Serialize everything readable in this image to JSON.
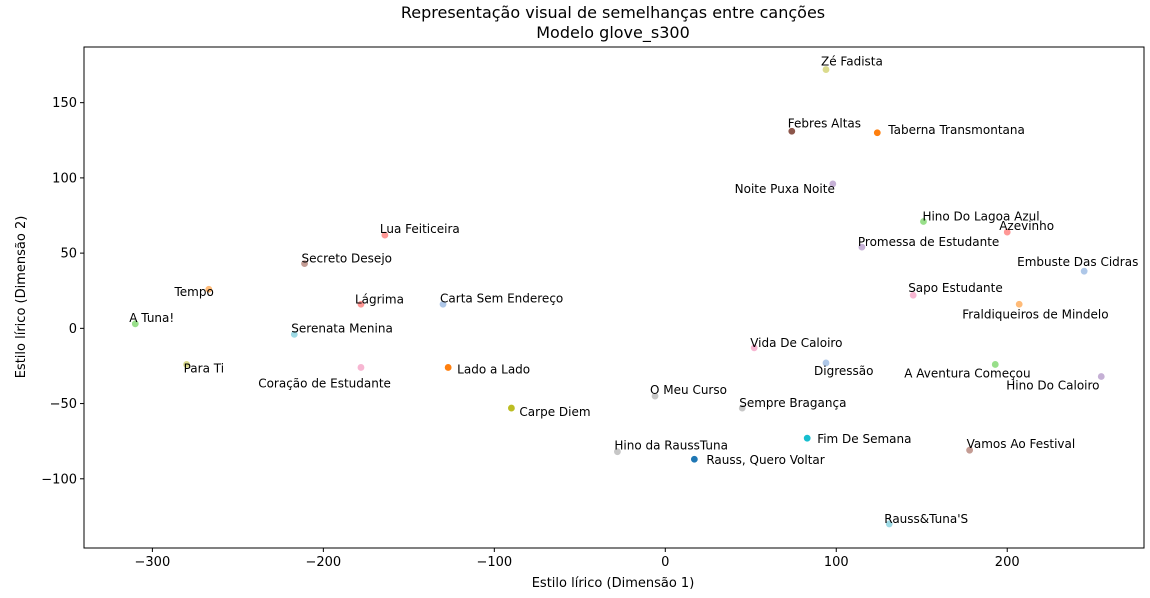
{
  "chart_data": {
    "type": "scatter",
    "title": "Representação visual de semelhanças entre canções",
    "subtitle": "Modelo glove_s300",
    "xlabel": "Estilo lírico (Dimensão 1)",
    "ylabel": "Estilo lírico (Dimensão 2)",
    "xlim": [
      -340,
      280
    ],
    "ylim": [
      -146,
      187
    ],
    "xticks": [
      -300,
      -200,
      -100,
      0,
      100,
      200
    ],
    "yticks": [
      -100,
      -50,
      0,
      50,
      100,
      150
    ],
    "xtick_labels": [
      "−300",
      "−200",
      "−100",
      "0",
      "100",
      "200"
    ],
    "ytick_labels": [
      "−100",
      "−50",
      "0",
      "50",
      "100",
      "150"
    ],
    "grid": false,
    "points": [
      {
        "label": "Zé Fadista",
        "x": 94,
        "y": 172,
        "color": "#dbdb8d"
      },
      {
        "label": "Febres Altas",
        "x": 74,
        "y": 131,
        "color": "#8c564b"
      },
      {
        "label": "Taberna Transmontana",
        "x": 124,
        "y": 130,
        "color": "#ff7f0e"
      },
      {
        "label": "Noite Puxa Noite",
        "x": 98,
        "y": 96,
        "color": "#c5b0d5"
      },
      {
        "label": "Hino Do Lagoa Azul",
        "x": 151,
        "y": 71,
        "color": "#98df8a"
      },
      {
        "label": "Azevinho",
        "x": 200,
        "y": 64,
        "color": "#ff9896"
      },
      {
        "label": "Promessa de Estudante",
        "x": 115,
        "y": 54,
        "color": "#c5b0d5"
      },
      {
        "label": "Embuste Das Cidras",
        "x": 245,
        "y": 38,
        "color": "#aec7e8"
      },
      {
        "label": "Sapo Estudante",
        "x": 145,
        "y": 22,
        "color": "#f7b6d2"
      },
      {
        "label": "Fraldiqueiros de Mindelo",
        "x": 207,
        "y": 16,
        "color": "#ffbb78"
      },
      {
        "label": "Lua Feiticeira",
        "x": -164,
        "y": 62,
        "color": "#ff9896"
      },
      {
        "label": "Secreto Desejo",
        "x": -211,
        "y": 43,
        "color": "#c49c94"
      },
      {
        "label": "Tempo",
        "x": -267,
        "y": 26,
        "color": "#ffbb78"
      },
      {
        "label": "Lágrima",
        "x": -178,
        "y": 16,
        "color": "#ff9896"
      },
      {
        "label": "Carta Sem Endereço",
        "x": -130,
        "y": 16,
        "color": "#aec7e8"
      },
      {
        "label": "A Tuna!",
        "x": -310,
        "y": 3,
        "color": "#98df8a"
      },
      {
        "label": "Serenata Menina",
        "x": -217,
        "y": -4,
        "color": "#9edae5"
      },
      {
        "label": "Para Ti",
        "x": -280,
        "y": -24,
        "color": "#dbdb8d"
      },
      {
        "label": "Coração de Estudante",
        "x": -178,
        "y": -26,
        "color": "#f7b6d2"
      },
      {
        "label": "Lado a Lado",
        "x": -127,
        "y": -26,
        "color": "#ff7f0e"
      },
      {
        "label": "Carpe Diem",
        "x": -90,
        "y": -53,
        "color": "#bcbd22"
      },
      {
        "label": "Vida De Caloiro",
        "x": 52,
        "y": -13,
        "color": "#f7b6d2"
      },
      {
        "label": "Digressão",
        "x": 94,
        "y": -23,
        "color": "#aec7e8"
      },
      {
        "label": "A Aventura Começou",
        "x": 193,
        "y": -24,
        "color": "#98df8a"
      },
      {
        "label": "Hino Do Caloiro",
        "x": 255,
        "y": -32,
        "color": "#c5b0d5"
      },
      {
        "label": "O Meu Curso",
        "x": -6,
        "y": -45,
        "color": "#c7c7c7"
      },
      {
        "label": "Sempre Bragança",
        "x": 45,
        "y": -53,
        "color": "#c7c7c7"
      },
      {
        "label": "Fim De Semana",
        "x": 83,
        "y": -73,
        "color": "#17becf"
      },
      {
        "label": "Hino da RaussTuna",
        "x": -28,
        "y": -82,
        "color": "#c7c7c7"
      },
      {
        "label": "Rauss, Quero Voltar",
        "x": 17,
        "y": -87,
        "color": "#1f77b4"
      },
      {
        "label": "Vamos Ao Festival",
        "x": 178,
        "y": -81,
        "color": "#c49c94"
      },
      {
        "label": "Rauss&Tuna'S",
        "x": 131,
        "y": -130,
        "color": "#9edae5"
      }
    ]
  }
}
